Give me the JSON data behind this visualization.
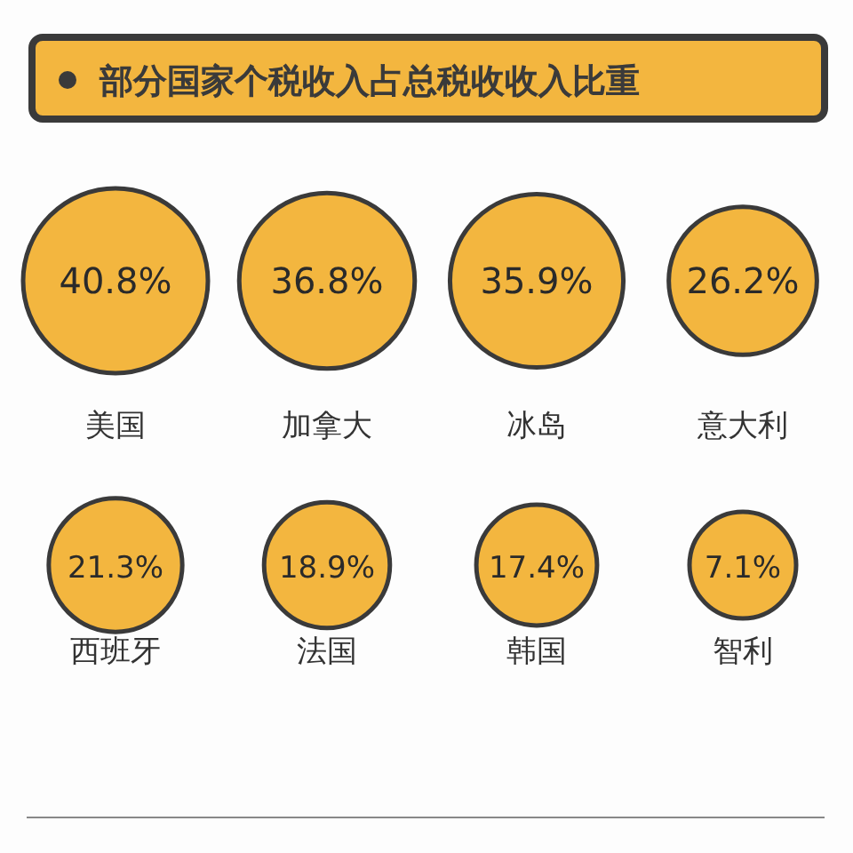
{
  "chart_data": {
    "type": "other",
    "title": "部分国家个税收入占总税收收入比重",
    "categories": [
      "美国",
      "加拿大",
      "冰岛",
      "意大利",
      "西班牙",
      "法国",
      "韩国",
      "智利"
    ],
    "values": [
      40.8,
      36.8,
      35.9,
      26.2,
      21.3,
      18.9,
      17.4,
      7.1
    ],
    "value_labels": [
      "40.8%",
      "36.8%",
      "35.9%",
      "26.2%",
      "21.3%",
      "18.9%",
      "17.4%",
      "7.1%"
    ],
    "color": "#f3b63f"
  }
}
